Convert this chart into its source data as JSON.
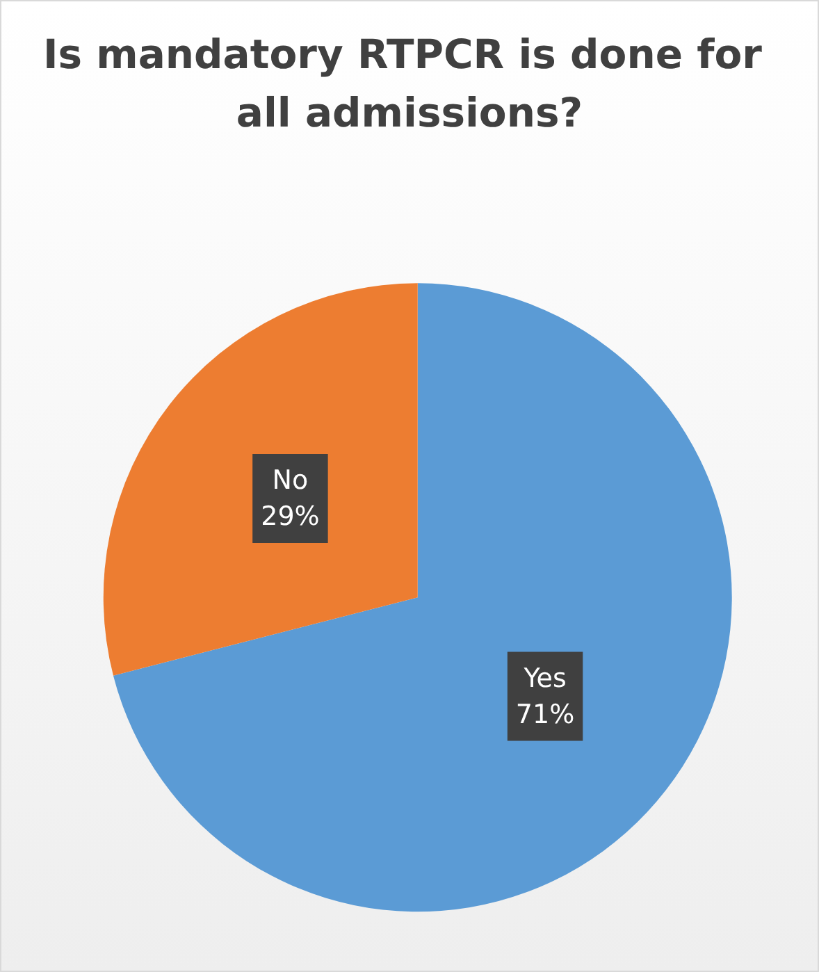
{
  "chart_data": {
    "type": "pie",
    "title": "Is mandatory RTPCR is done for all admissions?",
    "categories": [
      "Yes",
      "No"
    ],
    "values": [
      71,
      29
    ],
    "value_labels": [
      "71%",
      "29%"
    ],
    "colors": [
      "#5b9bd5",
      "#ed7d31"
    ],
    "legend": false
  }
}
